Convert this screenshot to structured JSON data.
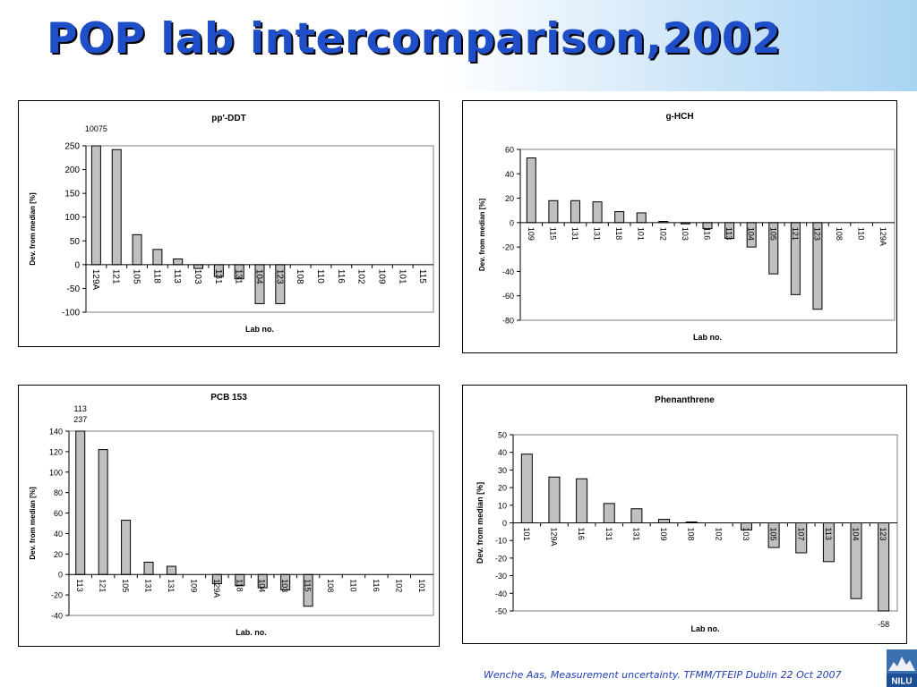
{
  "slide": {
    "title": "POP lab intercomparison,2002",
    "footer": "Wenche Aas, Measurement uncertainty. TFMM/TFEIP Dublin 22 Oct 2007",
    "logo_text": "NILU",
    "colors": {
      "title": "#1f4fc8",
      "bar_fill": "#c0c0c0",
      "bar_stroke": "#000000",
      "footer": "#1f3fb0"
    }
  },
  "chart_data": [
    {
      "type": "bar",
      "title": "pp'-DDT",
      "xlabel": "Lab no.",
      "ylabel": "Dev. from median [%]",
      "ylim": [
        -100,
        250
      ],
      "yticks": [
        -100,
        -50,
        0,
        50,
        100,
        150,
        200,
        250
      ],
      "categories": [
        "129A",
        "121",
        "105",
        "118",
        "113",
        "103",
        "131",
        "131",
        "104",
        "123",
        "108",
        "110",
        "116",
        "102",
        "109",
        "101",
        "115"
      ],
      "values": [
        250,
        242,
        63,
        32,
        12,
        -8,
        -25,
        -30,
        -82,
        -82,
        0,
        0,
        0,
        0,
        0,
        0,
        0
      ],
      "annotations": [
        {
          "category_index": 0,
          "text": "10075"
        }
      ],
      "grid": false
    },
    {
      "type": "bar",
      "title": "g-HCH",
      "xlabel": "Lab no.",
      "ylabel": "Dev. from median [%]",
      "ylim": [
        -80,
        60
      ],
      "yticks": [
        -80,
        -60,
        -40,
        -20,
        0,
        20,
        40,
        60
      ],
      "categories": [
        "109",
        "115",
        "131",
        "131",
        "118",
        "101",
        "102",
        "103",
        "116",
        "113",
        "104",
        "105",
        "121",
        "123",
        "108",
        "110",
        "129A"
      ],
      "values": [
        53,
        18,
        18,
        17,
        9,
        8,
        1,
        -1,
        -5,
        -13,
        -20,
        -42,
        -59,
        -71,
        0,
        0,
        0
      ],
      "grid": false
    },
    {
      "type": "bar",
      "title": "PCB 153",
      "xlabel": "Lab. no.",
      "ylabel": "Dev. from median [%]",
      "ylim": [
        -40,
        140
      ],
      "yticks": [
        -40,
        -20,
        0,
        20,
        40,
        60,
        80,
        100,
        120,
        140
      ],
      "categories": [
        "113",
        "121",
        "105",
        "131",
        "131",
        "109",
        "129A",
        "118",
        "104",
        "103",
        "115",
        "108",
        "110",
        "116",
        "102",
        "101"
      ],
      "values": [
        140,
        122,
        53,
        12,
        8,
        0,
        -9,
        -11,
        -13,
        -15,
        -31,
        0,
        0,
        0,
        0,
        0
      ],
      "annotations": [
        {
          "category_index": 0,
          "text": "113"
        },
        {
          "category_index": 0,
          "text": "237"
        }
      ],
      "grid": false
    },
    {
      "type": "bar",
      "title": "Phenanthrene",
      "xlabel": "Lab no.",
      "ylabel": "Dev. from median [%]",
      "ylim": [
        -50,
        50
      ],
      "yticks": [
        -50,
        -40,
        -30,
        -20,
        -10,
        0,
        10,
        20,
        30,
        40,
        50
      ],
      "categories": [
        "101",
        "129A",
        "116",
        "131",
        "131",
        "109",
        "108",
        "102",
        "103",
        "105",
        "107",
        "113",
        "104",
        "123"
      ],
      "values": [
        39,
        26,
        25,
        11,
        8,
        2,
        0.5,
        0,
        -4,
        -14,
        -17,
        -22,
        -43,
        -50
      ],
      "annotations": [
        {
          "category_index": 13,
          "text": "-58"
        }
      ],
      "grid": false
    }
  ]
}
